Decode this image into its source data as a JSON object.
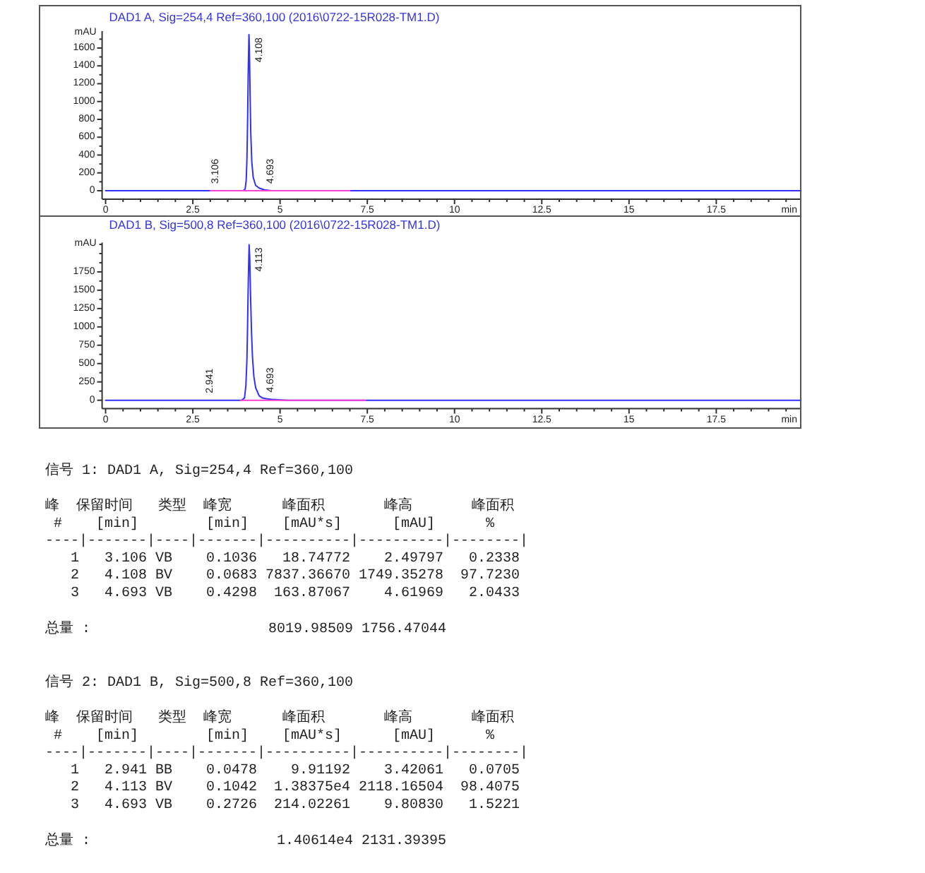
{
  "chart_data": [
    {
      "type": "line",
      "title": "DAD1 A, Sig=254,4 Ref=360,100 (2016\\0722-15R028-TM1.D)",
      "xlabel": "min",
      "ylabel": "mAU",
      "xlim": [
        -0.1,
        19.9
      ],
      "ylim": [
        -95,
        1790
      ],
      "xticks": [
        0,
        {
          "value": 0.5,
          "label": null
        },
        {
          "value": 1,
          "label": null
        },
        {
          "value": 1.5,
          "label": null
        },
        {
          "value": 2,
          "label": null
        },
        2.5,
        {
          "value": 3,
          "label": null
        },
        {
          "value": 3.5,
          "label": null
        },
        {
          "value": 4,
          "label": null
        },
        {
          "value": 4.5,
          "label": null
        },
        5,
        {
          "value": 5.5,
          "label": null
        },
        {
          "value": 6,
          "label": null
        },
        {
          "value": 6.5,
          "label": null
        },
        {
          "value": 7,
          "label": null
        },
        7.5,
        {
          "value": 8,
          "label": null
        },
        {
          "value": 8.5,
          "label": null
        },
        {
          "value": 9,
          "label": null
        },
        {
          "value": 9.5,
          "label": null
        },
        10,
        {
          "value": 10.5,
          "label": null
        },
        {
          "value": 11,
          "label": null
        },
        {
          "value": 11.5,
          "label": null
        },
        {
          "value": 12,
          "label": null
        },
        12.5,
        {
          "value": 13,
          "label": null
        },
        {
          "value": 13.5,
          "label": null
        },
        {
          "value": 14,
          "label": null
        },
        {
          "value": 14.5,
          "label": null
        },
        15,
        {
          "value": 15.5,
          "label": null
        },
        {
          "value": 16,
          "label": null
        },
        {
          "value": 16.5,
          "label": null
        },
        {
          "value": 17,
          "label": null
        },
        17.5,
        {
          "value": 18,
          "label": null
        },
        {
          "value": 18.5,
          "label": null
        },
        {
          "value": 19,
          "label": null
        },
        {
          "value": 19.5,
          "label": null
        }
      ],
      "yticks": [
        0,
        {
          "value": 100,
          "label": null
        },
        200,
        {
          "value": 300,
          "label": null
        },
        400,
        {
          "value": 500,
          "label": null
        },
        600,
        {
          "value": 700,
          "label": null
        },
        800,
        {
          "value": 900,
          "label": null
        },
        1000,
        {
          "value": 1100,
          "label": null
        },
        1200,
        {
          "value": 1300,
          "label": null
        },
        1400,
        {
          "value": 1500,
          "label": null
        },
        1600,
        {
          "value": 1700,
          "label": null
        }
      ],
      "series": [
        {
          "color": "#3030ff",
          "x": [
            0,
            3.95,
            4.0,
            4.03,
            4.05,
            4.07,
            4.09,
            4.108,
            4.12,
            4.14,
            4.16,
            4.19,
            4.23,
            4.3,
            4.4,
            4.55,
            4.75,
            19.9
          ],
          "values": [
            0,
            0,
            20,
            120,
            350,
            800,
            1400,
            1750,
            1620,
            1100,
            650,
            320,
            150,
            60,
            30,
            10,
            0,
            0
          ]
        },
        {
          "color": "#ff40d0",
          "x": [
            3.0,
            7.0
          ],
          "values": [
            0,
            0
          ]
        }
      ],
      "annotations": [
        {
          "text": "3.106",
          "x": 3.106,
          "y": 0
        },
        {
          "text": "4.108",
          "x": 4.108,
          "y": 1750
        },
        {
          "text": "4.693",
          "x": 4.693,
          "y": 0
        }
      ]
    },
    {
      "type": "line",
      "title": "DAD1 B, Sig=500,8 Ref=360,100 (2016\\0722-15R028-TM1.D)",
      "xlabel": "min",
      "ylabel": "mAU",
      "xlim": [
        -0.1,
        19.9
      ],
      "ylim": [
        -115,
        2150
      ],
      "xticks": [
        0,
        {
          "value": 0.5,
          "label": null
        },
        {
          "value": 1,
          "label": null
        },
        {
          "value": 1.5,
          "label": null
        },
        {
          "value": 2,
          "label": null
        },
        2.5,
        {
          "value": 3,
          "label": null
        },
        {
          "value": 3.5,
          "label": null
        },
        {
          "value": 4,
          "label": null
        },
        {
          "value": 4.5,
          "label": null
        },
        5,
        {
          "value": 5.5,
          "label": null
        },
        {
          "value": 6,
          "label": null
        },
        {
          "value": 6.5,
          "label": null
        },
        {
          "value": 7,
          "label": null
        },
        7.5,
        {
          "value": 8,
          "label": null
        },
        {
          "value": 8.5,
          "label": null
        },
        {
          "value": 9,
          "label": null
        },
        {
          "value": 9.5,
          "label": null
        },
        10,
        {
          "value": 10.5,
          "label": null
        },
        {
          "value": 11,
          "label": null
        },
        {
          "value": 11.5,
          "label": null
        },
        {
          "value": 12,
          "label": null
        },
        12.5,
        {
          "value": 13,
          "label": null
        },
        {
          "value": 13.5,
          "label": null
        },
        {
          "value": 14,
          "label": null
        },
        {
          "value": 14.5,
          "label": null
        },
        15,
        {
          "value": 15.5,
          "label": null
        },
        {
          "value": 16,
          "label": null
        },
        {
          "value": 16.5,
          "label": null
        },
        {
          "value": 17,
          "label": null
        },
        17.5,
        {
          "value": 18,
          "label": null
        },
        {
          "value": 18.5,
          "label": null
        },
        {
          "value": 19,
          "label": null
        },
        {
          "value": 19.5,
          "label": null
        }
      ],
      "yticks": [
        0,
        {
          "value": 125,
          "label": null
        },
        250,
        {
          "value": 375,
          "label": null
        },
        500,
        {
          "value": 625,
          "label": null
        },
        750,
        {
          "value": 875,
          "label": null
        },
        1000,
        {
          "value": 1125,
          "label": null
        },
        1250,
        {
          "value": 1375,
          "label": null
        },
        1500,
        {
          "value": 1625,
          "label": null
        },
        1750,
        {
          "value": 1875,
          "label": null
        },
        {
          "value": 2000,
          "label": null
        },
        {
          "value": 2125,
          "label": null
        }
      ],
      "series": [
        {
          "color": "#3030ff",
          "x": [
            0,
            3.9,
            3.98,
            4.02,
            4.05,
            4.07,
            4.09,
            4.113,
            4.13,
            4.15,
            4.18,
            4.21,
            4.25,
            4.3,
            4.4,
            4.5,
            4.6,
            4.8,
            5.2,
            19.9
          ],
          "values": [
            0,
            0,
            30,
            200,
            550,
            1050,
            1650,
            2120,
            1950,
            1500,
            950,
            580,
            320,
            170,
            60,
            30,
            20,
            10,
            0,
            0
          ]
        },
        {
          "color": "#ff40d0",
          "x": [
            3.87,
            7.45
          ],
          "values": [
            0,
            0
          ]
        }
      ],
      "annotations": [
        {
          "text": "2.941",
          "x": 2.941,
          "y": 0
        },
        {
          "text": "4.113",
          "x": 4.113,
          "y": 2120
        },
        {
          "text": "4.693",
          "x": 4.693,
          "y": 10
        }
      ]
    },
    {
      "type": "other",
      "title": "信号 1: DAD1 A, Sig=254,4 Ref=360,100",
      "annotations": [
        "峰  保留时间   类型  峰宽      峰面积       峰高       峰面积",
        " #    [min]        [min]    [mAU*s]      [mAU]      %",
        "----|-------|----|-------|----------|----------|--------|",
        "   1   3.106 VB    0.1036   18.74772    2.49797   0.2338",
        "   2   4.108 BV    0.0683 7837.36670 1749.35278  97.7230",
        "   3   4.693 VB    0.4298  163.87067    4.61969   2.0433",
        "总量 :                     8019.98509 1756.47044"
      ]
    },
    {
      "type": "other",
      "title": "信号 2: DAD1 B, Sig=500,8 Ref=360,100",
      "annotations": [
        "峰  保留时间   类型  峰宽      峰面积       峰高       峰面积",
        " #    [min]        [min]    [mAU*s]      [mAU]      %",
        "----|-------|----|-------|----------|----------|--------|",
        "   1   2.941 BB    0.0478    9.91192    3.42061   0.0705",
        "   2   4.113 BV    0.1042  1.38375e4 2118.16504  98.4075",
        "   3   4.693 VB    0.2726  214.02261    9.80830   1.5221",
        "总量 :                      1.40614e4 2131.39395"
      ]
    }
  ]
}
